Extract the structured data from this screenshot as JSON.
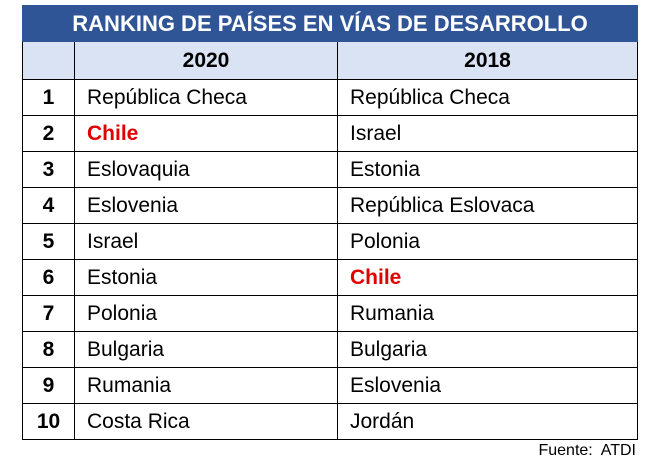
{
  "table": {
    "title": "RANKING DE PAÍSES EN VÍAS DE DESARROLLO",
    "columns": [
      "",
      "2020",
      "2018"
    ],
    "rows": [
      [
        1,
        "República Checa",
        "República Checa"
      ],
      [
        2,
        "Chile",
        "Israel"
      ],
      [
        3,
        "Eslovaquia",
        "Estonia"
      ],
      [
        4,
        "Eslovenia",
        "República Eslovaca"
      ],
      [
        5,
        "Israel",
        "Polonia"
      ],
      [
        6,
        "Estonia",
        "Chile"
      ],
      [
        7,
        "Polonia",
        "Rumania"
      ],
      [
        8,
        "Bulgaria",
        "Bulgaria"
      ],
      [
        9,
        "Rumania",
        "Eslovenia"
      ],
      [
        10,
        "Costa Rica",
        "Jordán"
      ]
    ],
    "highlighted_cells": [
      [
        1,
        1
      ],
      [
        5,
        2
      ]
    ],
    "highlight_color": "#e00000"
  },
  "source": "Fuente:  ATDI"
}
